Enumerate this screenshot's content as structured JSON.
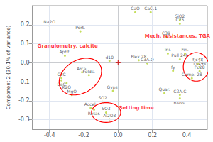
{
  "chart_data": {
    "type": "scatter",
    "ylabel": "Component 2 (30.1% of variance)",
    "xlim": [
      -0.5,
      0.52
    ],
    "ylim": [
      -0.35,
      0.3
    ],
    "xticks": [
      -0.4,
      -0.2,
      {
        "value": 0,
        "label": "0.0"
      },
      0.2,
      0.4
    ],
    "yticks": [
      -0.3,
      -0.2,
      -0.1,
      {
        "value": 0,
        "label": "0.0"
      },
      0.1,
      0.2
    ],
    "grid": true,
    "points": [
      {
        "label": "CaO",
        "x": 0.1,
        "y": 0.265
      },
      {
        "label": "CaO.1",
        "x": 0.19,
        "y": 0.265
      },
      {
        "label": "SiO2",
        "x": 0.36,
        "y": 0.225
      },
      {
        "label": "C25",
        "x": 0.36,
        "y": 0.205
      },
      {
        "label": "Na2O",
        "x": -0.4,
        "y": 0.195
      },
      {
        "label": "Port.",
        "x": -0.22,
        "y": 0.165
      },
      {
        "label": "C39",
        "x": 0.28,
        "y": 0.135
      },
      {
        "label": "Apht.",
        "x": -0.31,
        "y": 0.037
      },
      {
        "label": "d10",
        "x": -0.05,
        "y": 0.01
      },
      {
        "label": "Arca.",
        "x": -0.21,
        "y": -0.05
      },
      {
        "label": "Felds.",
        "x": -0.17,
        "y": -0.065
      },
      {
        "label": "C3C",
        "x": -0.33,
        "y": -0.08
      },
      {
        "label": "BaC",
        "x": -0.33,
        "y": -0.093
      },
      {
        "label": "K2O",
        "x": -0.3,
        "y": -0.107
      },
      {
        "label": "MgO",
        "x": -0.27,
        "y": -0.17
      },
      {
        "label": "Gyps.",
        "x": -0.03,
        "y": -0.148
      },
      {
        "label": "Flex 28",
        "x": 0.12,
        "y": 0.013
      },
      {
        "label": "C3A.O",
        "x": 0.17,
        "y": -0.003
      },
      {
        "label": "Quar.",
        "x": 0.27,
        "y": -0.16
      },
      {
        "label": "C3A.C",
        "x": 0.36,
        "y": -0.17
      },
      {
        "label": "Blass.",
        "x": 0.36,
        "y": -0.188
      },
      {
        "label": "SO2",
        "x": -0.09,
        "y": -0.205
      },
      {
        "label": "Comp. 28",
        "x": 0.43,
        "y": -0.082
      },
      {
        "label": "Pull 24h",
        "x": 0.36,
        "y": 0.018
      },
      {
        "label": "f'c28",
        "x": 0.475,
        "y": -0.045
      },
      {
        "label": "f'c24s",
        "x": 0.475,
        "y": -0.023
      },
      {
        "label": "f'c48",
        "x": 0.465,
        "y": -0.003
      },
      {
        "label": "Retar.",
        "x": -0.14,
        "y": -0.247
      },
      {
        "label": "Accel.",
        "x": -0.16,
        "y": -0.238
      },
      {
        "label": "SO3",
        "x": -0.07,
        "y": -0.262
      },
      {
        "label": "Al2O3",
        "x": -0.05,
        "y": -0.298
      },
      {
        "label": "fy",
        "x": 0.32,
        "y": -0.043
      },
      {
        "label": "Ini.",
        "x": 0.29,
        "y": 0.048
      },
      {
        "label": "Fin.",
        "x": 0.39,
        "y": 0.048
      }
    ],
    "origin": {
      "x": 0,
      "y": 0,
      "color": "#cc0000",
      "marker": "plus"
    },
    "ellipses": [
      {
        "label": "Granulometry, calcite",
        "color": "red",
        "cx": -0.22,
        "cy": -0.073,
        "rx": 0.13,
        "ry": 0.088,
        "angle": 25,
        "lx": -0.47,
        "ly": 0.075
      },
      {
        "label": "Mech. resistances, TGA",
        "color": "red",
        "cx": 0.455,
        "cy": -0.022,
        "rx": 0.075,
        "ry": 0.075,
        "angle": 0,
        "lx": 0.155,
        "ly": 0.125
      },
      {
        "label": "Setting time",
        "color": "red",
        "cx": -0.07,
        "cy": -0.262,
        "rx": 0.085,
        "ry": 0.052,
        "angle": 0,
        "lx": 0.005,
        "ly": -0.25
      }
    ]
  }
}
